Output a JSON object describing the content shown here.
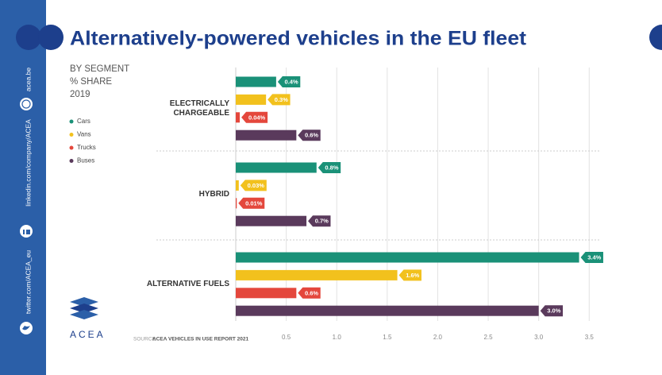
{
  "chart_data": {
    "type": "bar",
    "orientation": "horizontal",
    "title": "Alternatively-powered vehicles in the EU fleet",
    "subtitle": [
      "BY SEGMENT",
      "% SHARE",
      "2019"
    ],
    "categories": [
      "ELECTRICALLY CHARGEABLE",
      "HYBRID",
      "ALTERNATIVE FUELS"
    ],
    "series": [
      {
        "name": "Cars",
        "color": "#1a9178",
        "values": [
          0.4,
          0.8,
          3.4
        ],
        "value_labels": [
          "0.4%",
          "0.8%",
          "3.4%"
        ]
      },
      {
        "name": "Vans",
        "color": "#f2c11d",
        "values": [
          0.3,
          0.03,
          1.6
        ],
        "value_labels": [
          "0.3%",
          "0.03%",
          "1.6%"
        ]
      },
      {
        "name": "Trucks",
        "color": "#e4473c",
        "values": [
          0.04,
          0.01,
          0.6
        ],
        "value_labels": [
          "0.04%",
          "0.01%",
          "0.6%"
        ]
      },
      {
        "name": "Buses",
        "color": "#5a3a5c",
        "values": [
          0.6,
          0.7,
          3.0
        ],
        "value_labels": [
          "0.6%",
          "0.7%",
          "3.0%"
        ]
      }
    ],
    "xlim": [
      0,
      3.6
    ],
    "xticks": [
      0.5,
      {
        "value": 1,
        "label": "1.0"
      },
      1.5,
      {
        "value": 2,
        "label": "2.0"
      },
      2.5,
      {
        "value": 3,
        "label": "3.0"
      },
      3.5
    ],
    "grid": true,
    "source_label": "SOURCE:",
    "source": "ACEA VEHICLES IN USE REPORT 2021"
  },
  "sidebar": {
    "links": [
      "acea.be",
      "linkedin.com/company/ACEA",
      "twitter.com/ACEA_eu"
    ]
  },
  "logo": "ACEA"
}
